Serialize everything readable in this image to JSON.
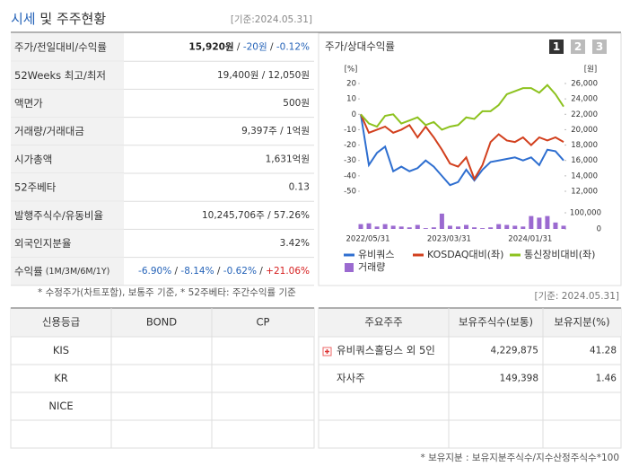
{
  "header": {
    "title_main": "시세",
    "title_rest": " 및 주주현황",
    "date": "[기준:2024.05.31]"
  },
  "quote_table": {
    "rows": [
      {
        "label": "주가/전일대비/수익률",
        "value": [
          {
            "text": "15,920원",
            "tone": "bold"
          },
          {
            "text": " / ",
            "tone": "plain"
          },
          {
            "text": "-20원",
            "tone": "down"
          },
          {
            "text": " / ",
            "tone": "plain"
          },
          {
            "text": "-0.12%",
            "tone": "down"
          }
        ]
      },
      {
        "label": "52Weeks 최고/최저",
        "value": [
          {
            "text": "19,400원 / 12,050원",
            "tone": "plain"
          }
        ]
      },
      {
        "label": "액면가",
        "value": [
          {
            "text": "500원",
            "tone": "plain"
          }
        ]
      },
      {
        "label": "거래량/거래대금",
        "value": [
          {
            "text": "9,397주 / 1억원",
            "tone": "plain"
          }
        ]
      },
      {
        "label": "시가총액",
        "value": [
          {
            "text": "1,631억원",
            "tone": "plain"
          }
        ]
      },
      {
        "label": "52주베타",
        "value": [
          {
            "text": "0.13",
            "tone": "plain"
          }
        ]
      },
      {
        "label": "발행주식수/유동비율",
        "value": [
          {
            "text": "10,245,706주 / 57.26%",
            "tone": "plain"
          }
        ]
      },
      {
        "label": "외국인지분율",
        "value": [
          {
            "text": "3.42%",
            "tone": "plain"
          }
        ]
      },
      {
        "label": "수익률",
        "note": " (1M/3M/6M/1Y)",
        "value": [
          {
            "text": "-6.90%",
            "tone": "down"
          },
          {
            "text": " / ",
            "tone": "plain"
          },
          {
            "text": "-8.14%",
            "tone": "down"
          },
          {
            "text": " / ",
            "tone": "plain"
          },
          {
            "text": "-0.62%",
            "tone": "down"
          },
          {
            "text": " / ",
            "tone": "plain"
          },
          {
            "text": "+21.06%",
            "tone": "up"
          }
        ]
      }
    ]
  },
  "chart_data": {
    "type": "line",
    "title": "주가/상대수익률",
    "buttons": [
      "1",
      "2",
      "3"
    ],
    "y_unit": "[%]",
    "y2_unit": "[원]",
    "categories": [
      "2022/05/31",
      null,
      null,
      null,
      null,
      null,
      null,
      null,
      null,
      null,
      "2023/03/31",
      null,
      null,
      null,
      null,
      null,
      null,
      null,
      null,
      null,
      "2024/01/31",
      null,
      null,
      null,
      null,
      null
    ],
    "ylim": [
      -50,
      20
    ],
    "yticks": [
      20,
      10,
      0,
      -10,
      -20,
      -30,
      -40,
      -50
    ],
    "y2lim": [
      12000,
      26000
    ],
    "y2ticks": [
      {
        "value": 26000,
        "label": "26,000"
      },
      {
        "value": 24000,
        "label": "24,000"
      },
      {
        "value": 22000,
        "label": "22,000"
      },
      {
        "value": 20000,
        "label": "20,000"
      },
      {
        "value": 18000,
        "label": "18,000"
      },
      {
        "value": 16000,
        "label": "16,000"
      },
      {
        "value": 14000,
        "label": "14,000"
      },
      {
        "value": 12000,
        "label": "12,000"
      }
    ],
    "series": [
      {
        "name": "유비쿼스",
        "color": "#2f6fd0",
        "values": [
          0,
          -33,
          -25,
          -21,
          -37,
          -34,
          -37,
          -35,
          -30,
          -34,
          -40,
          -46,
          -44,
          -36,
          -43,
          -36,
          -31,
          -30,
          -29,
          -28,
          -30,
          -28,
          -33,
          -23,
          -24,
          -30
        ]
      },
      {
        "name": "KOSDAQ대비(좌)",
        "color": "#d2401e",
        "values": [
          0,
          -12,
          -10,
          -8,
          -12,
          -10,
          -7,
          -15,
          -8,
          -15,
          -23,
          -32,
          -34,
          -28,
          -42,
          -33,
          -18,
          -13,
          -17,
          -18,
          -15,
          -20,
          -15,
          -17,
          -15,
          -18
        ]
      },
      {
        "name": "통신장비대비(좌)",
        "color": "#8dc21f",
        "values": [
          0,
          -6,
          -8,
          -1,
          0,
          -6,
          -4,
          -2,
          -7,
          -5,
          -10,
          -8,
          -7,
          -2,
          -3,
          2,
          2,
          6,
          13,
          15,
          17,
          17,
          14,
          19,
          13,
          5
        ]
      }
    ],
    "volume": {
      "name": "거래량",
      "color": "#9b6ad0",
      "values": [
        30000,
        35000,
        15000,
        30000,
        20000,
        15000,
        10000,
        25000,
        5000,
        10000,
        95000,
        20000,
        15000,
        25000,
        10000,
        5000,
        10000,
        30000,
        25000,
        20000,
        15000,
        80000,
        70000,
        80000,
        40000,
        20000
      ],
      "ylim": [
        0,
        100000
      ],
      "yticks": [
        {
          "value": 100000,
          "label": "100,000"
        },
        0
      ]
    }
  },
  "footnote_left": "* 수정주가(차트포함), 보통주 기준, * 52주베타: 주간수익률 기준",
  "date_right": "[기준: 2024.05.31]",
  "credit_table": {
    "headers": [
      "신용등급",
      "BOND",
      "CP"
    ],
    "rows": [
      [
        "KIS"
      ],
      [
        "KR"
      ],
      [
        "NICE"
      ]
    ]
  },
  "holder_table": {
    "headers": [
      "주요주주",
      "보유주식수(보통)",
      "보유지분(%)"
    ],
    "rows": [
      [
        "유비쿼스홀딩스 외 5인",
        "4,229,875",
        "41.28"
      ],
      [
        "자사주",
        "149,398",
        "1.46"
      ]
    ]
  },
  "footnote_bottom": "* 보유지분 : 보유지분주식수/지수산정주식수*100"
}
